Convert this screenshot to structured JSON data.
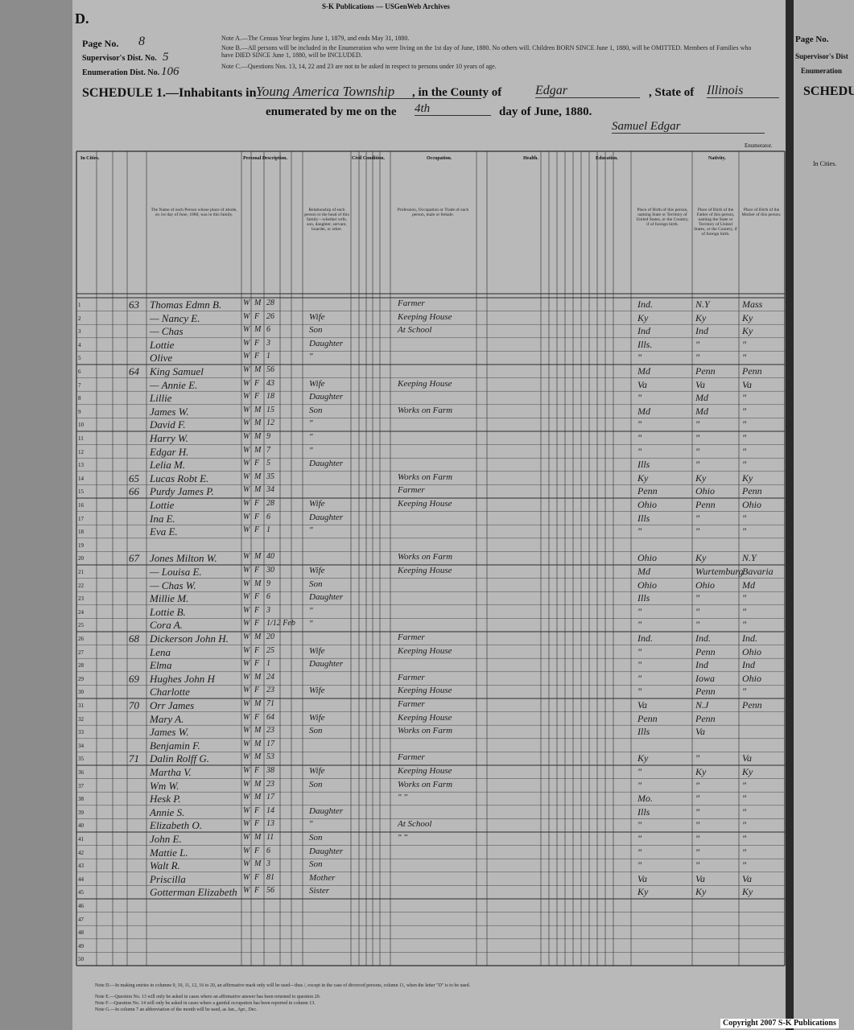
{
  "header": {
    "publisher": "S-K Publications — USGenWeb Archives",
    "sheet_letter": "D.",
    "page_no_label": "Page No.",
    "page_no": "8",
    "supervisor_label": "Supervisor's Dist. No.",
    "supervisor_no": "5",
    "enumeration_label": "Enumeration Dist. No.",
    "enumeration_no": "106",
    "notes": [
      "Note A.—The Census Year begins June 1, 1879, and ends May 31, 1880.",
      "Note B.—All persons will be included in the Enumeration who were living on the 1st day of June, 1880. No others will. Children BORN SINCE June 1, 1880, will be OMITTED. Members of Families who have DIED SINCE June 1, 1880, will be INCLUDED.",
      "Note C.—Questions Nos. 13, 14, 22 and 23 are not to be asked in respect to persons under 10 years of age."
    ],
    "schedule_label": "SCHEDULE 1.—Inhabitants in",
    "place": "Young America Township",
    "county_label": ", in the County of",
    "county": "Edgar",
    "state_label": ", State of",
    "state": "Illinois",
    "enumerated_label": "enumerated by me on the",
    "day": "4th",
    "date_label": "day of June, 1880.",
    "signature": "Samuel Edgar",
    "enumerator_label": "Enumerator."
  },
  "column_groups": [
    "In Cities.",
    "Personal Description.",
    "Civil Condition.",
    "Occupation.",
    "Health.",
    "Education.",
    "Nativity."
  ],
  "column_headings": {
    "name": "The Name of each Person whose place of abode, on 1st day of June, 1880, was in this family.",
    "relationship": "Relationship of each person to the head of this family—whether wife, son, daughter, servant, boarder, or other.",
    "occupation": "Profession, Occupation or Trade of each person, male or female.",
    "birthplace": "Place of Birth of this person, naming State or Territory of United States, or the Country, if of foreign birth.",
    "father": "Place of Birth of the Father of this person, naming the State or Territory of United States, or the Country, if of foreign birth.",
    "mother": "Place of Birth of the Mother of this person."
  },
  "table": {
    "rows": [
      [
        "1",
        "63",
        "Thomas Edmn B.",
        "W",
        "M",
        "28",
        null,
        "Farmer",
        "Ind.",
        "N.Y",
        "Mass"
      ],
      [
        "2",
        null,
        "— Nancy E.",
        "W",
        "F",
        "26",
        "Wife",
        "Keeping House",
        "Ky",
        "Ky",
        "Ky"
      ],
      [
        "3",
        null,
        "— Chas",
        "W",
        "M",
        "6",
        "Son",
        "At School",
        "Ind",
        "Ind",
        "Ky"
      ],
      [
        "4",
        null,
        "Lottie",
        "W",
        "F",
        "3",
        "Daughter",
        null,
        "Ills.",
        "\"",
        "\""
      ],
      [
        "5",
        null,
        "Olive",
        "W",
        "F",
        "1",
        "\"",
        null,
        "\"",
        "\"",
        "\""
      ],
      [
        "6",
        "64",
        "King Samuel",
        "W",
        "M",
        "56",
        null,
        null,
        "Md",
        "Penn",
        "Penn"
      ],
      [
        "7",
        null,
        "— Annie E.",
        "W",
        "F",
        "43",
        "Wife",
        "Keeping House",
        "Va",
        "Va",
        "Va"
      ],
      [
        "8",
        null,
        "Lillie",
        "W",
        "F",
        "18",
        "Daughter",
        null,
        "\"",
        "Md",
        "\""
      ],
      [
        "9",
        null,
        "James W.",
        "W",
        "M",
        "15",
        "Son",
        "Works on Farm",
        "Md",
        "Md",
        "\""
      ],
      [
        "10",
        null,
        "David F.",
        "W",
        "M",
        "12",
        "\"",
        null,
        "\"",
        "\"",
        "\""
      ],
      [
        "11",
        null,
        "Harry W.",
        "W",
        "M",
        "9",
        "\"",
        null,
        "\"",
        "\"",
        "\""
      ],
      [
        "12",
        null,
        "Edgar H.",
        "W",
        "M",
        "7",
        "\"",
        null,
        "\"",
        "\"",
        "\""
      ],
      [
        "13",
        null,
        "Lelia M.",
        "W",
        "F",
        "5",
        "Daughter",
        null,
        "Ills",
        "\"",
        "\""
      ],
      [
        "14",
        "65",
        "Lucas Robt E.",
        "W",
        "M",
        "35",
        null,
        "Works on Farm",
        "Ky",
        "Ky",
        "Ky"
      ],
      [
        "15",
        "66",
        "Purdy James P.",
        "W",
        "M",
        "34",
        null,
        "Farmer",
        "Penn",
        "Ohio",
        "Penn"
      ],
      [
        "16",
        null,
        "Lottie",
        "W",
        "F",
        "28",
        "Wife",
        "Keeping House",
        "Ohio",
        "Penn",
        "Ohio"
      ],
      [
        "17",
        null,
        "Ina E.",
        "W",
        "F",
        "6",
        "Daughter",
        null,
        "Ills",
        "\"",
        "\""
      ],
      [
        "18",
        null,
        "Eva E.",
        "W",
        "F",
        "1",
        "\"",
        null,
        "\"",
        "\"",
        "\""
      ],
      [
        "19",
        null,
        null,
        null,
        null,
        null,
        null,
        null,
        null,
        null,
        null
      ],
      [
        "20",
        "67",
        "Jones Milton W.",
        "W",
        "M",
        "40",
        null,
        "Works on Farm",
        "Ohio",
        "Ky",
        "N.Y"
      ],
      [
        "21",
        null,
        "— Louisa E.",
        "W",
        "F",
        "30",
        "Wife",
        "Keeping House",
        "Md",
        "Wurtemburg",
        "Bavaria"
      ],
      [
        "22",
        null,
        "— Chas W.",
        "W",
        "M",
        "9",
        "Son",
        null,
        "Ohio",
        "Ohio",
        "Md"
      ],
      [
        "23",
        null,
        "Millie M.",
        "W",
        "F",
        "6",
        "Daughter",
        null,
        "Ills",
        "\"",
        "\""
      ],
      [
        "24",
        null,
        "Lottie B.",
        "W",
        "F",
        "3",
        "\"",
        null,
        "\"",
        "\"",
        "\""
      ],
      [
        "25",
        null,
        "Cora A.",
        "W",
        "F",
        "1/12 Feb",
        "\"",
        null,
        "\"",
        "\"",
        "\""
      ],
      [
        "26",
        "68",
        "Dickerson John H.",
        "W",
        "M",
        "20",
        null,
        "Farmer",
        "Ind.",
        "Ind.",
        "Ind."
      ],
      [
        "27",
        null,
        "Lena",
        "W",
        "F",
        "25",
        "Wife",
        "Keeping House",
        "\"",
        "Penn",
        "Ohio"
      ],
      [
        "28",
        null,
        "Elma",
        "W",
        "F",
        "1",
        "Daughter",
        null,
        "\"",
        "Ind",
        "Ind"
      ],
      [
        "29",
        "69",
        "Hughes John H",
        "W",
        "M",
        "24",
        null,
        "Farmer",
        "\"",
        "Iowa",
        "Ohio"
      ],
      [
        "30",
        null,
        "Charlotte",
        "W",
        "F",
        "23",
        "Wife",
        "Keeping House",
        "\"",
        "Penn",
        "\""
      ],
      [
        "31",
        "70",
        "Orr James",
        "W",
        "M",
        "71",
        null,
        "Farmer",
        "Va",
        "N.J",
        "Penn"
      ],
      [
        "32",
        null,
        "Mary A.",
        "W",
        "F",
        "64",
        "Wife",
        "Keeping House",
        "Penn",
        "Penn",
        null
      ],
      [
        "33",
        null,
        "James W.",
        "W",
        "M",
        "23",
        "Son",
        "Works on Farm",
        "Ills",
        "Va",
        null
      ],
      [
        "34",
        null,
        "Benjamin F.",
        "W",
        "M",
        "17",
        null,
        null,
        null,
        null,
        null
      ],
      [
        "35",
        "71",
        "Dalin Rolff G.",
        "W",
        "M",
        "53",
        null,
        "Farmer",
        "Ky",
        "\"",
        "Va"
      ],
      [
        "36",
        null,
        "Martha V.",
        "W",
        "F",
        "38",
        "Wife",
        "Keeping House",
        "\"",
        "Ky",
        "Ky"
      ],
      [
        "37",
        null,
        "Wm W.",
        "W",
        "M",
        "23",
        "Son",
        "Works on Farm",
        "\"",
        "\"",
        "\""
      ],
      [
        "38",
        null,
        "Hesk P.",
        "W",
        "M",
        "17",
        null,
        "\"   \"",
        "Mo.",
        "\"",
        "\""
      ],
      [
        "39",
        null,
        "Annie S.",
        "W",
        "F",
        "14",
        "Daughter",
        null,
        "Ills",
        "\"",
        "\""
      ],
      [
        "40",
        null,
        "Elizabeth O.",
        "W",
        "F",
        "13",
        "\"",
        "At School",
        "\"",
        "\"",
        "\""
      ],
      [
        "41",
        null,
        "John E.",
        "W",
        "M",
        "11",
        "Son",
        "\"   \"",
        "\"",
        "\"",
        "\""
      ],
      [
        "42",
        null,
        "Mattie L.",
        "W",
        "F",
        "6",
        "Daughter",
        null,
        "\"",
        "\"",
        "\""
      ],
      [
        "43",
        null,
        "Walt R.",
        "W",
        "M",
        "3",
        "Son",
        null,
        "\"",
        "\"",
        "\""
      ],
      [
        "44",
        null,
        "Priscilla",
        "W",
        "F",
        "81",
        "Mother",
        null,
        "Va",
        "Va",
        "Va"
      ],
      [
        "45",
        null,
        "Gotterman Elizabeth",
        "W",
        "F",
        "56",
        "Sister",
        null,
        "Ky",
        "Ky",
        "Ky"
      ],
      [
        "46",
        null,
        null,
        null,
        null,
        null,
        null,
        null,
        null,
        null,
        null
      ],
      [
        "47",
        null,
        null,
        null,
        null,
        null,
        null,
        null,
        null,
        null,
        null
      ],
      [
        "48",
        null,
        null,
        null,
        null,
        null,
        null,
        null,
        null,
        null,
        null
      ],
      [
        "49",
        null,
        null,
        null,
        null,
        null,
        null,
        null,
        null,
        null,
        null
      ],
      [
        "50",
        null,
        null,
        null,
        null,
        null,
        null,
        null,
        null,
        null,
        null
      ]
    ]
  },
  "footer": {
    "notes": [
      "Note D.—In making entries in columns 9, 10, 11, 12, 16 to 20, an affirmative mark only will be used—thus /, except in the case of divorced persons, column 11, when the letter \"D\" is to be used.",
      "Note E.—Question No. 13 will only be asked in cases where an affirmative answer has been returned to question 20.",
      "Note F.—Question No. 14 will only be asked in cases where a gainful occupation has been reported in column 13.",
      "Note G.—In column 7 an abbreviation of the month will be used, as Jan., Apr., Dec."
    ],
    "copyright": "Copyright 2007 S-K Publications"
  },
  "right_page": {
    "page_no_label": "Page No.",
    "supervisor_label": "Supervisor's Dist",
    "enumeration_label": "Enumeration",
    "schedule_label": "SCHEDUL",
    "in_cities": "In Cities."
  }
}
